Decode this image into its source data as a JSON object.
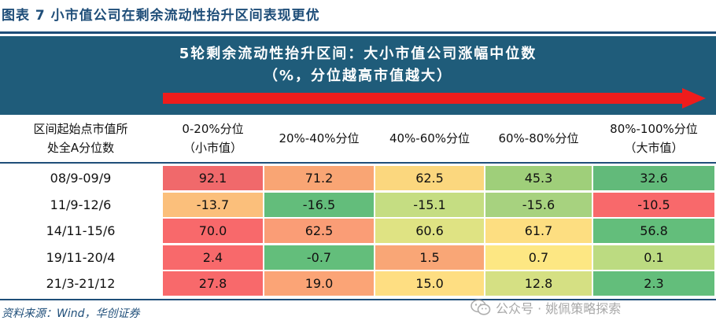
{
  "figure": {
    "title": "图表 7   小市值公司在剩余流动性抬升区间表现更优",
    "source": "资料来源：Wind，华创证券"
  },
  "banner": {
    "line1": "5轮剩余流动性抬升区间：大小市值公司涨幅中位数",
    "line2": "（%，分位越高市值越大）",
    "arrow_color": "#ee1c1c"
  },
  "table": {
    "row_header": [
      "区间起始点市值所",
      "处全A分位数"
    ],
    "columns": [
      {
        "line1": "0-20%分位",
        "line2": "（小市值）"
      },
      {
        "line1": "20%-40%分位",
        "line2": ""
      },
      {
        "line1": "40%-60%分位",
        "line2": ""
      },
      {
        "line1": "60%-80%分位",
        "line2": ""
      },
      {
        "line1": "80%-100%分位",
        "line2": "（大市值）"
      }
    ],
    "rows": [
      {
        "label": "08/9-09/9",
        "values": [
          "92.1",
          "71.2",
          "62.5",
          "45.3",
          "32.6"
        ],
        "colors": [
          "#f0696b",
          "#f9a574",
          "#fbd77e",
          "#9fcf7a",
          "#62ba7a"
        ]
      },
      {
        "label": "11/9-12/6",
        "values": [
          "-13.7",
          "-16.5",
          "-15.1",
          "-15.6",
          "-10.5"
        ],
        "colors": [
          "#fbbf7b",
          "#63bd7b",
          "#c5dd82",
          "#a7d27f",
          "#f8696b"
        ]
      },
      {
        "label": "14/11-15/6",
        "values": [
          "70.0",
          "62.5",
          "60.6",
          "61.7",
          "56.8"
        ],
        "colors": [
          "#f8696b",
          "#fa9d76",
          "#dfe383",
          "#fdde81",
          "#63be7b"
        ]
      },
      {
        "label": "19/11-20/4",
        "values": [
          "2.4",
          "-0.7",
          "1.5",
          "0.7",
          "0.1"
        ],
        "colors": [
          "#f8696b",
          "#63be7b",
          "#f9a676",
          "#fde783",
          "#bcdb81"
        ]
      },
      {
        "label": "21/3-21/12",
        "values": [
          "27.8",
          "19.0",
          "15.0",
          "12.8",
          "2.3"
        ],
        "colors": [
          "#f8696b",
          "#fba476",
          "#fede82",
          "#d5e083",
          "#63be7b"
        ]
      }
    ]
  },
  "watermark": {
    "text": "公众号 · 姚佩策略探索",
    "icon": "wechat-icon"
  }
}
